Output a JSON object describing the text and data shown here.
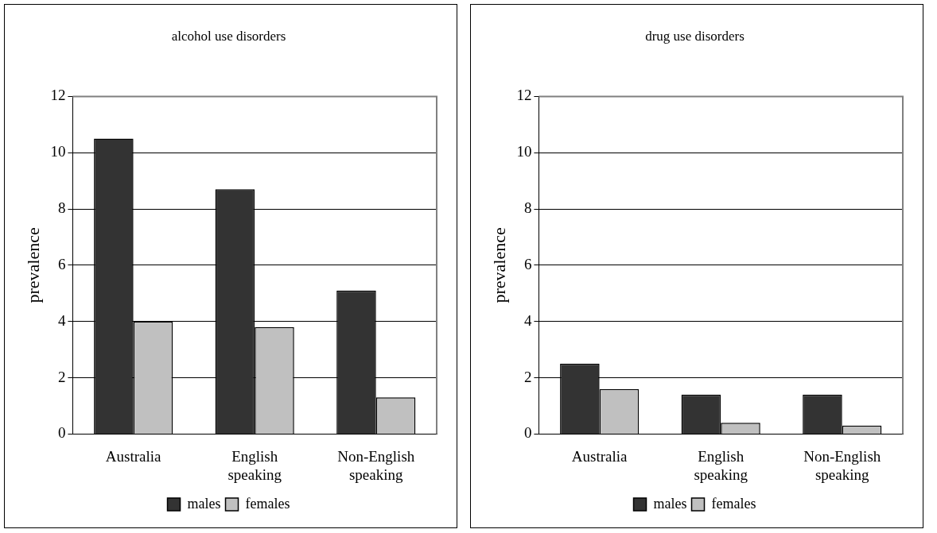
{
  "chart_data": [
    {
      "type": "bar",
      "title": "alcohol use disorders",
      "ylabel": "prevalence",
      "categories": [
        "Australia",
        "English speaking",
        "Non-English speaking"
      ],
      "series": [
        {
          "name": "males",
          "color": "#333333",
          "values": [
            10.5,
            8.7,
            5.1
          ]
        },
        {
          "name": "females",
          "color": "#c0c0c0",
          "values": [
            4,
            3.8,
            1.3
          ]
        }
      ],
      "ylim": [
        0,
        12
      ],
      "yticks": [
        0,
        2,
        4,
        6,
        8,
        10,
        12
      ],
      "grid": "y",
      "legend": "bottom"
    },
    {
      "type": "bar",
      "title": "drug use disorders",
      "ylabel": "prevalence",
      "categories": [
        "Australia",
        "English speaking",
        "Non-English speaking"
      ],
      "series": [
        {
          "name": "males",
          "color": "#333333",
          "values": [
            2.5,
            1.4,
            1.4
          ]
        },
        {
          "name": "females",
          "color": "#c0c0c0",
          "values": [
            1.6,
            0.4,
            0.3
          ]
        }
      ],
      "ylim": [
        0,
        12
      ],
      "yticks": [
        0,
        2,
        4,
        6,
        8,
        10,
        12
      ],
      "grid": "y",
      "legend": "bottom"
    }
  ]
}
